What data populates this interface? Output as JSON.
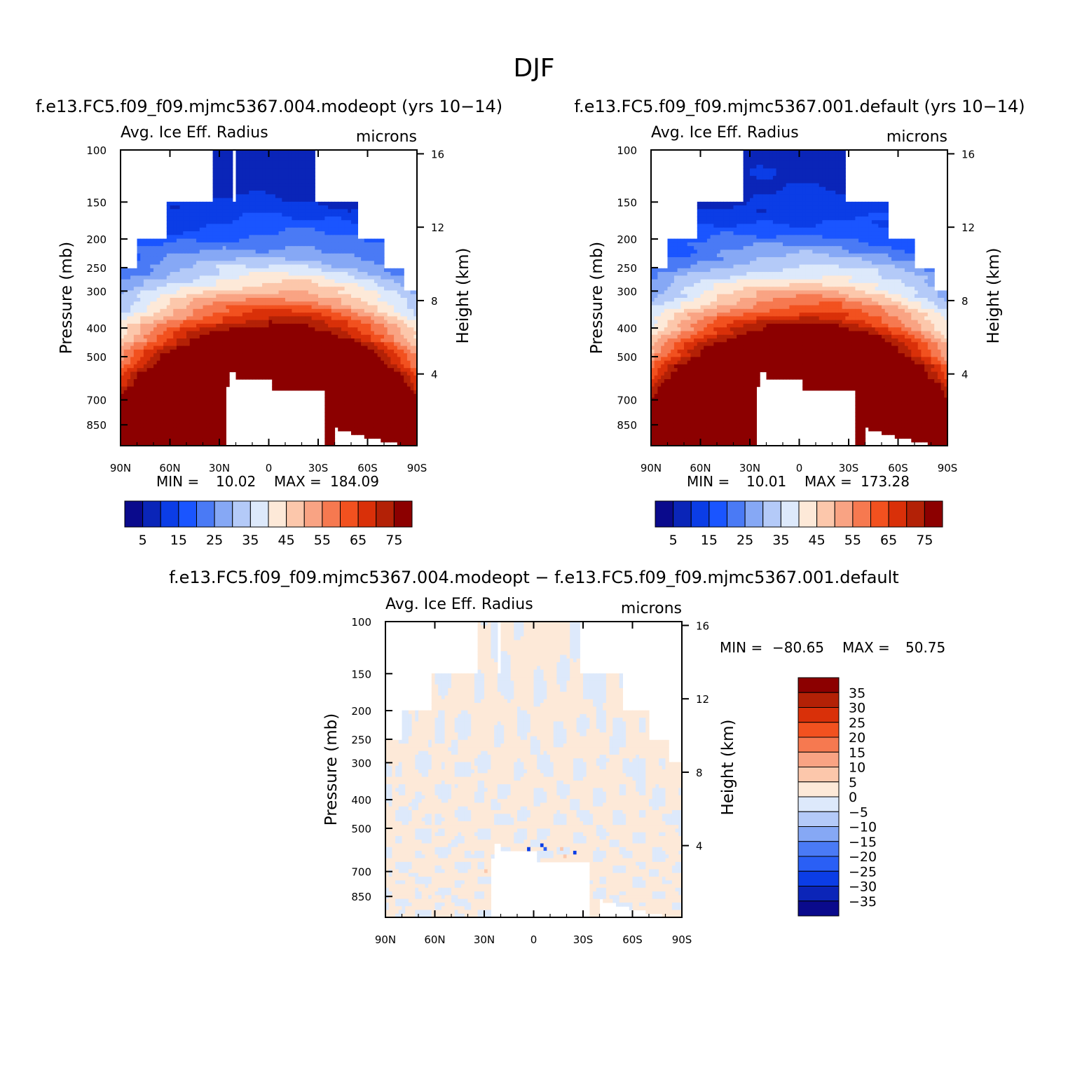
{
  "title": "DJF",
  "colors": {
    "abs_palette": [
      "#0a0a8c",
      "#0a25b8",
      "#0b3de6",
      "#1a55ff",
      "#4a7af5",
      "#86a8f5",
      "#b4caf8",
      "#dde9fb",
      "#fde9d8",
      "#fcc7ab",
      "#f9a383",
      "#f67950",
      "#f2511f",
      "#d93009",
      "#b32106",
      "#8c0000"
    ],
    "diff_palette": [
      "#0a0a8c",
      "#0b25b8",
      "#0b3de6",
      "#2a5ff5",
      "#4a7af5",
      "#86a8f5",
      "#b4caf8",
      "#dde9fb",
      "#fde9d8",
      "#fcc7ab",
      "#f9a383",
      "#f67950",
      "#f2511f",
      "#d93009",
      "#b32106",
      "#8c0000"
    ],
    "axis": "#000000",
    "background": "#ffffff"
  },
  "chart_data": [
    {
      "id": "panel-modeopt",
      "type": "heatmap",
      "title": "f.e13.FC5.f09_f09.mjmc5367.004.modeopt (yrs 10−14)",
      "variable": "Avg. Ice Eff. Radius",
      "units": "microns",
      "ylabel": "Pressure (mb)",
      "ylabel_right": "Height (km)",
      "x_ticks": [
        "90N",
        "60N",
        "30N",
        "0",
        "30S",
        "60S",
        "90S"
      ],
      "y_ticks": [
        "100",
        "150",
        "200",
        "250",
        "300",
        "400",
        "500",
        "700",
        "850"
      ],
      "y_ticks_right": [
        "16",
        "12",
        "8",
        "4"
      ],
      "xlim": [
        90,
        -90
      ],
      "ylim_mb": [
        100,
        1000
      ],
      "min_label": "MIN =",
      "min_value": "10.02",
      "max_label": "MAX =",
      "max_value": "184.09",
      "colorbar_labels": [
        "5",
        "15",
        "25",
        "35",
        "45",
        "55",
        "65",
        "75"
      ],
      "levels": [
        5,
        10,
        15,
        20,
        25,
        30,
        35,
        40,
        45,
        50,
        55,
        60,
        65,
        70,
        75
      ],
      "value_range": [
        10.02,
        184.09
      ]
    },
    {
      "id": "panel-default",
      "type": "heatmap",
      "title": "f.e13.FC5.f09_f09.mjmc5367.001.default (yrs 10−14)",
      "variable": "Avg. Ice Eff. Radius",
      "units": "microns",
      "ylabel": "Pressure (mb)",
      "ylabel_right": "Height (km)",
      "x_ticks": [
        "90N",
        "60N",
        "30N",
        "0",
        "30S",
        "60S",
        "90S"
      ],
      "y_ticks": [
        "100",
        "150",
        "200",
        "250",
        "300",
        "400",
        "500",
        "700",
        "850"
      ],
      "y_ticks_right": [
        "16",
        "12",
        "8",
        "4"
      ],
      "xlim": [
        90,
        -90
      ],
      "ylim_mb": [
        100,
        1000
      ],
      "min_label": "MIN =",
      "min_value": "10.01",
      "max_label": "MAX =",
      "max_value": "173.28",
      "colorbar_labels": [
        "5",
        "15",
        "25",
        "35",
        "45",
        "55",
        "65",
        "75"
      ],
      "levels": [
        5,
        10,
        15,
        20,
        25,
        30,
        35,
        40,
        45,
        50,
        55,
        60,
        65,
        70,
        75
      ],
      "value_range": [
        10.01,
        173.28
      ]
    },
    {
      "id": "panel-diff",
      "type": "heatmap",
      "title": "f.e13.FC5.f09_f09.mjmc5367.004.modeopt − f.e13.FC5.f09_f09.mjmc5367.001.default",
      "variable": "Avg. Ice Eff. Radius",
      "units": "microns",
      "ylabel": "Pressure (mb)",
      "ylabel_right": "Height (km)",
      "x_ticks": [
        "90N",
        "60N",
        "30N",
        "0",
        "30S",
        "60S",
        "90S"
      ],
      "y_ticks": [
        "100",
        "150",
        "200",
        "250",
        "300",
        "400",
        "500",
        "700",
        "850"
      ],
      "y_ticks_right": [
        "16",
        "12",
        "8",
        "4"
      ],
      "xlim": [
        90,
        -90
      ],
      "ylim_mb": [
        100,
        1000
      ],
      "min_label": "MIN =",
      "min_value": "−80.65",
      "max_label": "MAX =",
      "max_value": "50.75",
      "colorbar_labels": [
        "35",
        "30",
        "25",
        "20",
        "15",
        "10",
        "5",
        "0",
        "−5",
        "−10",
        "−15",
        "−20",
        "−25",
        "−30",
        "−35"
      ],
      "levels": [
        -35,
        -30,
        -25,
        -20,
        -15,
        -10,
        -5,
        0,
        5,
        10,
        15,
        20,
        25,
        30,
        35
      ],
      "value_range": [
        -80.65,
        50.75
      ]
    }
  ]
}
